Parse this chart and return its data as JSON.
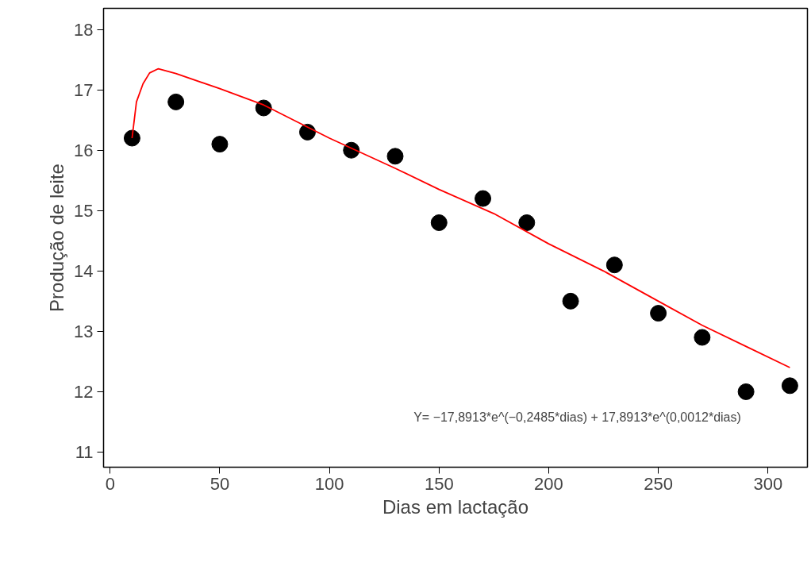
{
  "chart_data": {
    "type": "scatter",
    "xlabel": "Dias em lactação",
    "ylabel": "Produção de leite",
    "xlim": [
      -3,
      318
    ],
    "ylim": [
      10.75,
      18.35
    ],
    "xticks": [
      0,
      50,
      100,
      150,
      200,
      250,
      300
    ],
    "yticks": [
      11,
      12,
      13,
      14,
      15,
      16,
      17,
      18
    ],
    "grid": false,
    "annotations": [
      "Y= −17,8913*e^(−0,2485*dias) + 17,8913*e^(0,0012*dias)"
    ],
    "series": [
      {
        "marker": "circle",
        "color": "#000000",
        "x": [
          10,
          30,
          50,
          70,
          90,
          110,
          130,
          150,
          170,
          190,
          210,
          230,
          250,
          270,
          290,
          310
        ],
        "values": [
          16.2,
          16.8,
          16.1,
          16.7,
          16.3,
          16.0,
          15.9,
          14.8,
          15.2,
          14.8,
          13.5,
          14.1,
          13.3,
          12.9,
          12.0,
          12.1
        ]
      },
      {
        "type": "line",
        "marker": "none",
        "color": "#ff0000",
        "line_style": "solid",
        "x": [
          10,
          12,
          15,
          18,
          22,
          30,
          50,
          70,
          100,
          130,
          150,
          175,
          200,
          225,
          250,
          270,
          290,
          310
        ],
        "values": [
          16.2,
          16.8,
          17.1,
          17.28,
          17.35,
          17.27,
          17.02,
          16.75,
          16.2,
          15.7,
          15.35,
          14.95,
          14.45,
          14.0,
          13.5,
          13.1,
          12.75,
          12.4
        ]
      }
    ]
  }
}
